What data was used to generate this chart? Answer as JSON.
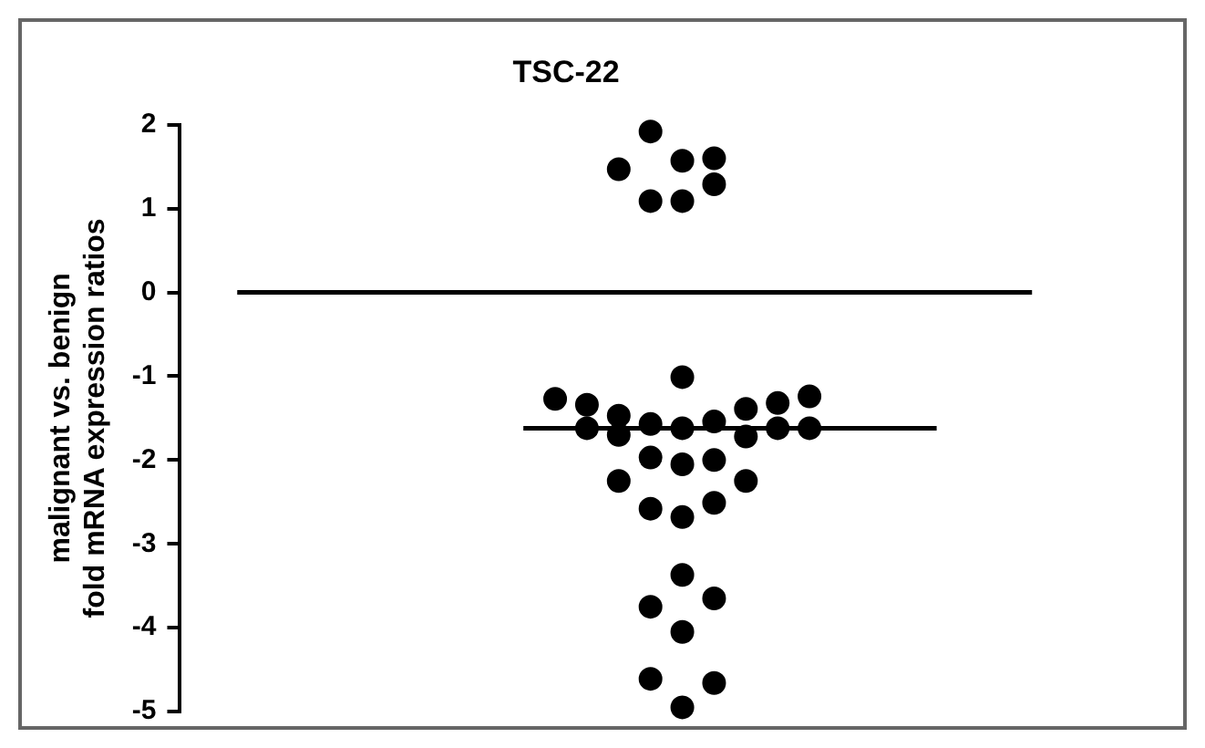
{
  "chart_data": {
    "type": "scatter",
    "title": "TSC-22",
    "ylabel": "malignant vs. benign\nfold mRNA expression ratios",
    "categories": [
      null,
      null,
      null,
      null,
      null,
      null,
      null,
      null,
      null,
      null,
      null,
      null,
      null,
      null,
      null,
      null,
      null,
      null,
      null,
      null,
      null,
      null,
      null,
      null,
      null,
      null
    ],
    "ylim": [
      -5,
      2
    ],
    "yticks": [
      -5,
      -4,
      -3,
      -2,
      -1,
      0,
      1,
      2
    ],
    "tick_labels": "y",
    "grid": false,
    "legend": false,
    "series": [
      {
        "color": "#000000",
        "marker": "circle",
        "values": [
          null,
          null,
          null,
          null,
          null,
          null,
          null,
          null,
          null,
          null,
          -1.27,
          -1.34,
          1.47,
          1.92,
          1.57,
          1.6,
          -1.39,
          -1.32,
          -1.24,
          null,
          null,
          null,
          null,
          null,
          null,
          null
        ]
      },
      {
        "color": "#000000",
        "marker": "circle",
        "values": [
          null,
          null,
          null,
          null,
          null,
          null,
          null,
          null,
          null,
          null,
          null,
          -1.62,
          -1.47,
          1.09,
          1.09,
          1.29,
          -1.72,
          -1.62,
          -1.62,
          null,
          null,
          null,
          null,
          null,
          null,
          null
        ]
      },
      {
        "color": "#000000",
        "marker": "circle",
        "values": [
          null,
          null,
          null,
          null,
          null,
          null,
          null,
          null,
          null,
          null,
          null,
          null,
          -1.7,
          -1.57,
          -1.01,
          -1.54,
          -2.25,
          null,
          null,
          null,
          null,
          null,
          null,
          null,
          null,
          null
        ]
      },
      {
        "color": "#000000",
        "marker": "circle",
        "values": [
          null,
          null,
          null,
          null,
          null,
          null,
          null,
          null,
          null,
          null,
          null,
          null,
          -2.25,
          -1.97,
          -1.62,
          -2.0,
          null,
          null,
          null,
          null,
          null,
          null,
          null,
          null,
          null,
          null
        ]
      },
      {
        "color": "#000000",
        "marker": "circle",
        "values": [
          null,
          null,
          null,
          null,
          null,
          null,
          null,
          null,
          null,
          null,
          null,
          null,
          null,
          -2.58,
          -2.05,
          -2.51,
          null,
          null,
          null,
          null,
          null,
          null,
          null,
          null,
          null,
          null
        ]
      },
      {
        "color": "#000000",
        "marker": "circle",
        "values": [
          null,
          null,
          null,
          null,
          null,
          null,
          null,
          null,
          null,
          null,
          null,
          null,
          null,
          -3.75,
          -2.68,
          -3.65,
          null,
          null,
          null,
          null,
          null,
          null,
          null,
          null,
          null,
          null
        ]
      },
      {
        "color": "#000000",
        "marker": "circle",
        "values": [
          null,
          null,
          null,
          null,
          null,
          null,
          null,
          null,
          null,
          null,
          null,
          null,
          null,
          -4.61,
          -3.37,
          -4.66,
          null,
          null,
          null,
          null,
          null,
          null,
          null,
          null,
          null,
          null
        ]
      },
      {
        "color": "#000000",
        "marker": "circle",
        "values": [
          null,
          null,
          null,
          null,
          null,
          null,
          null,
          null,
          null,
          null,
          null,
          null,
          null,
          null,
          -4.05,
          null,
          null,
          null,
          null,
          null,
          null,
          null,
          null,
          null,
          null,
          null
        ]
      },
      {
        "color": "#000000",
        "marker": "circle",
        "values": [
          null,
          null,
          null,
          null,
          null,
          null,
          null,
          null,
          null,
          null,
          null,
          null,
          null,
          null,
          -4.95,
          null,
          null,
          null,
          null,
          null,
          null,
          null,
          null,
          null,
          null,
          null
        ]
      },
      {
        "type": "line",
        "color": "#000000",
        "values": [
          0,
          0,
          0,
          0,
          0,
          0,
          0,
          0,
          0,
          0,
          0,
          0,
          0,
          0,
          0,
          0,
          0,
          0,
          0,
          0,
          0,
          0,
          0,
          0,
          0,
          0
        ]
      },
      {
        "type": "line",
        "color": "#000000",
        "values": [
          null,
          null,
          null,
          null,
          null,
          null,
          null,
          null,
          null,
          -1.62,
          -1.62,
          -1.62,
          -1.62,
          -1.62,
          -1.62,
          -1.62,
          -1.62,
          -1.62,
          -1.62,
          -1.62,
          -1.62,
          -1.62,
          -1.62,
          null,
          null,
          null
        ]
      }
    ]
  }
}
